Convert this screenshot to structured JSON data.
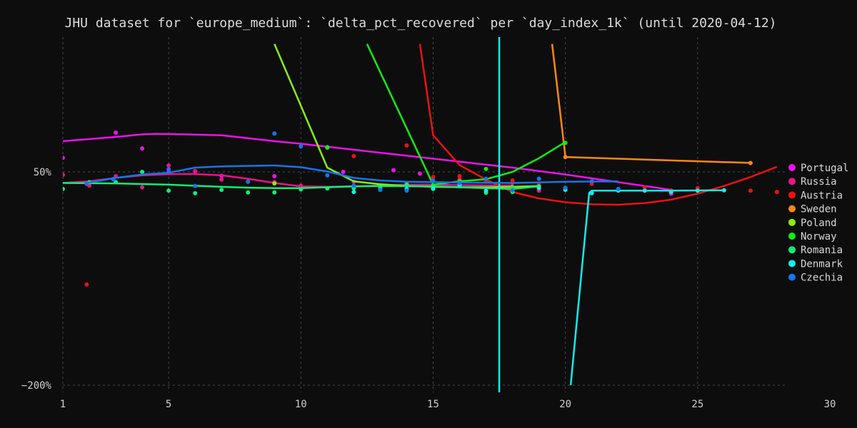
{
  "chart_data": {
    "type": "line",
    "title": "JHU dataset for `europe_medium`: `delta_pct_recovered` per `day_index_1k` (until 2020-04-12)",
    "xlabel": "",
    "ylabel": "",
    "xlim": [
      1,
      30
    ],
    "ylim": [
      -200,
      100
    ],
    "x_ticks": [
      {
        "value": 1,
        "label": "1"
      },
      {
        "value": 5,
        "label": "5"
      },
      {
        "value": 10,
        "label": "10"
      },
      {
        "value": 15,
        "label": "15"
      },
      {
        "value": 20,
        "label": "20"
      },
      {
        "value": 25,
        "label": "25"
      },
      {
        "value": 30,
        "label": "30"
      }
    ],
    "y_ticks": [
      {
        "value": 50,
        "label": "50%"
      },
      {
        "value": -200,
        "label": "−200%"
      }
    ],
    "grid": true,
    "legend_position": "right",
    "series": [
      {
        "name": "Portugal",
        "color": "#ee11ee",
        "points": [
          [
            1,
            66.5
          ],
          [
            3.0,
            96
          ],
          [
            4,
            77.5
          ],
          [
            5,
            50
          ],
          [
            6,
            50.5
          ],
          [
            7,
            45.5
          ],
          [
            9,
            45
          ],
          [
            11.6,
            50
          ],
          [
            13.5,
            52
          ],
          [
            14.5,
            48
          ],
          [
            16,
            40.6
          ],
          [
            20,
            30
          ],
          [
            24,
            24.5
          ]
        ],
        "trend": [
          [
            1,
            86
          ],
          [
            3,
            91
          ],
          [
            4,
            94
          ],
          [
            4.5,
            94.5
          ],
          [
            5,
            94.4
          ],
          [
            7,
            93
          ],
          [
            9,
            86
          ],
          [
            10,
            83
          ],
          [
            12,
            76
          ],
          [
            14,
            69
          ],
          [
            16,
            62
          ],
          [
            18,
            55
          ],
          [
            20,
            47
          ],
          [
            22,
            38
          ],
          [
            24,
            29
          ]
        ]
      },
      {
        "name": "Russia",
        "color": "#ee1188",
        "points": [
          [
            1,
            46.6
          ],
          [
            1.9,
            36
          ],
          [
            2,
            34
          ],
          [
            3,
            45
          ],
          [
            4,
            32
          ],
          [
            5,
            57.5
          ],
          [
            6,
            51
          ],
          [
            7,
            41
          ],
          [
            8,
            38.5
          ],
          [
            9,
            38
          ],
          [
            10,
            33.8
          ],
          [
            12,
            38.5
          ],
          [
            14,
            37
          ],
          [
            15,
            30.5
          ],
          [
            16,
            41
          ],
          [
            18,
            37
          ],
          [
            19,
            28
          ],
          [
            20,
            31
          ],
          [
            22,
            30
          ],
          [
            23,
            28
          ],
          [
            24,
            28
          ]
        ],
        "trend": [
          [
            1,
            37
          ],
          [
            2,
            39
          ],
          [
            3,
            43
          ],
          [
            4,
            46
          ],
          [
            5,
            47.4
          ],
          [
            6,
            47.5
          ],
          [
            7,
            46
          ],
          [
            8,
            42
          ],
          [
            9,
            37
          ],
          [
            10,
            33
          ],
          [
            11,
            32.5
          ],
          [
            12,
            33
          ],
          [
            13,
            34
          ],
          [
            14,
            35
          ],
          [
            15,
            35
          ],
          [
            17,
            34
          ],
          [
            18,
            34
          ]
        ]
      },
      {
        "name": "Austria",
        "color": "#ee1111",
        "points": [
          [
            1.9,
            -82
          ],
          [
            12,
            68.5
          ],
          [
            14,
            81
          ],
          [
            15,
            44
          ],
          [
            16,
            45
          ],
          [
            17,
            39
          ],
          [
            18,
            40
          ],
          [
            19,
            35
          ],
          [
            21,
            36
          ],
          [
            23,
            32
          ],
          [
            24,
            28.5
          ],
          [
            25,
            31
          ],
          [
            27,
            28
          ],
          [
            28,
            26.5
          ]
        ],
        "trend": [
          [
            14.5,
            200
          ],
          [
            15,
            93
          ],
          [
            16,
            58
          ],
          [
            17,
            41
          ],
          [
            18,
            26.5
          ],
          [
            19,
            19
          ],
          [
            20,
            14.5
          ],
          [
            21,
            12
          ],
          [
            22,
            11.5
          ],
          [
            23,
            13.5
          ],
          [
            24,
            17.5
          ],
          [
            25,
            24.5
          ],
          [
            26,
            33.5
          ],
          [
            27,
            44
          ],
          [
            28,
            56
          ]
        ]
      },
      {
        "name": "Sweden",
        "color": "#ff8811",
        "points": [
          [
            20,
            67.5
          ],
          [
            27,
            60.5
          ]
        ],
        "trend": [
          [
            19.5,
            200
          ],
          [
            20,
            67.5
          ],
          [
            27,
            60.5
          ]
        ]
      },
      {
        "name": "Poland",
        "color": "#88ee11",
        "points": [
          [
            9,
            36.5
          ],
          [
            11,
            78.5
          ],
          [
            14,
            35
          ],
          [
            15,
            33.5
          ],
          [
            18,
            32
          ],
          [
            19,
            33
          ]
        ],
        "trend": [
          [
            9,
            200
          ],
          [
            11,
            55
          ],
          [
            12,
            39
          ],
          [
            13,
            35.5
          ],
          [
            14,
            33.5
          ],
          [
            15,
            32.5
          ],
          [
            16,
            32
          ],
          [
            17,
            32
          ],
          [
            18,
            32.5
          ],
          [
            19,
            33.5
          ]
        ]
      },
      {
        "name": "Norway",
        "color": "#11ee11",
        "points": [
          [
            11,
            79
          ],
          [
            15,
            32
          ],
          [
            16,
            39
          ],
          [
            17,
            53.5
          ],
          [
            18,
            31
          ],
          [
            20,
            84
          ]
        ],
        "trend": [
          [
            12.5,
            200
          ],
          [
            15,
            35
          ],
          [
            16,
            39
          ],
          [
            17,
            41.5
          ],
          [
            18,
            50
          ],
          [
            19,
            66
          ],
          [
            20,
            85
          ]
        ]
      },
      {
        "name": "Romania",
        "color": "#11ee77",
        "points": [
          [
            1,
            30
          ],
          [
            2,
            38
          ],
          [
            3,
            38
          ],
          [
            4,
            50
          ],
          [
            5,
            28
          ],
          [
            6,
            25
          ],
          [
            7,
            29
          ],
          [
            8,
            26
          ],
          [
            9,
            26
          ],
          [
            10,
            29.5
          ],
          [
            11,
            30.7
          ],
          [
            12,
            31
          ],
          [
            13,
            31
          ],
          [
            14,
            35
          ],
          [
            15,
            30
          ],
          [
            16,
            34.5
          ],
          [
            17,
            25.5
          ],
          [
            18,
            26.5
          ],
          [
            19,
            32
          ]
        ],
        "trend": [
          [
            1,
            37
          ],
          [
            3,
            36.5
          ],
          [
            5,
            35
          ],
          [
            7,
            32.5
          ],
          [
            8,
            31.5
          ],
          [
            9,
            31
          ],
          [
            10,
            31
          ],
          [
            11,
            32
          ],
          [
            12,
            33
          ],
          [
            13,
            33.5
          ],
          [
            15,
            33
          ],
          [
            16,
            32
          ],
          [
            17,
            31
          ],
          [
            18,
            30
          ],
          [
            19,
            33
          ]
        ]
      },
      {
        "name": "Denmark",
        "color": "#11eeee",
        "points": [
          [
            12,
            26.5
          ],
          [
            13,
            29
          ],
          [
            14,
            30
          ],
          [
            15,
            31
          ],
          [
            16,
            35
          ],
          [
            17,
            28
          ],
          [
            18,
            29
          ],
          [
            19,
            31
          ],
          [
            20,
            29
          ],
          [
            21,
            25
          ],
          [
            22,
            28
          ],
          [
            23,
            28
          ],
          [
            24,
            26.5
          ],
          [
            25,
            28
          ],
          [
            26,
            28.5
          ]
        ],
        "trend": [
          [
            20.2,
            -200
          ],
          [
            20.9,
            25.5
          ],
          [
            21,
            28
          ],
          [
            24,
            28
          ],
          [
            26,
            28.5
          ]
        ],
        "vline": 17.5
      },
      {
        "name": "Czechia",
        "color": "#1177ee",
        "points": [
          [
            1.9,
            36.5
          ],
          [
            2.9,
            41.5
          ],
          [
            5,
            53
          ],
          [
            6,
            33.5
          ],
          [
            8,
            38.5
          ],
          [
            9,
            95
          ],
          [
            10,
            80
          ],
          [
            11,
            46
          ],
          [
            12,
            34
          ],
          [
            13,
            29
          ],
          [
            14,
            28
          ],
          [
            15,
            40
          ],
          [
            16,
            37
          ],
          [
            17,
            42
          ],
          [
            18,
            28.5
          ],
          [
            19,
            42
          ],
          [
            20,
            31.5
          ],
          [
            21,
            39
          ],
          [
            22,
            30
          ]
        ],
        "trend": [
          [
            1.9,
            37
          ],
          [
            3,
            43
          ],
          [
            4,
            47
          ],
          [
            5,
            49
          ],
          [
            6,
            55
          ],
          [
            7,
            56.5
          ],
          [
            9,
            57.5
          ],
          [
            10,
            55.5
          ],
          [
            11,
            50.5
          ],
          [
            12,
            43
          ],
          [
            13,
            40
          ],
          [
            14,
            38.5
          ],
          [
            16,
            37.5
          ],
          [
            18,
            37
          ],
          [
            20,
            38.5
          ],
          [
            22,
            39
          ]
        ]
      }
    ]
  }
}
